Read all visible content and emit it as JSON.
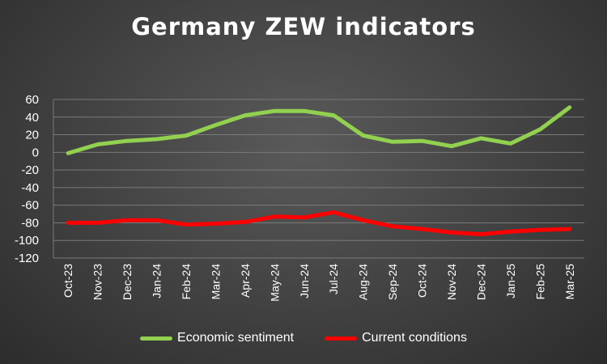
{
  "chart_data": {
    "type": "line",
    "title": "Germany ZEW indicators",
    "categories": [
      "Oct-23",
      "Nov-23",
      "Dec-23",
      "Jan-24",
      "Feb-24",
      "Mar-24",
      "Apr-24",
      "May-24",
      "Jun-24",
      "Jul-24",
      "Aug-24",
      "Sep-24",
      "Oct-24",
      "Nov-24",
      "Dec-24",
      "Jan-25",
      "Feb-25",
      "Mar-25"
    ],
    "ylim": [
      -120,
      60
    ],
    "yticks": [
      "60",
      "40",
      "20",
      "0",
      "-20",
      "-40",
      "-60",
      "-80",
      "-100",
      "-120"
    ],
    "grid": true,
    "legend_position": "bottom",
    "series": [
      {
        "name": "Economic sentiment",
        "color": "#92d050",
        "values": [
          -1,
          9,
          13,
          15,
          19,
          31,
          42,
          47,
          47,
          42,
          19,
          12,
          13,
          7,
          16,
          10,
          26,
          51
        ]
      },
      {
        "name": "Current conditions",
        "color": "#ff0000",
        "values": [
          -80,
          -80,
          -77,
          -77,
          -82,
          -81,
          -79,
          -73,
          -74,
          -68,
          -77,
          -84,
          -87,
          -91,
          -93,
          -90,
          -88,
          -87
        ]
      }
    ]
  }
}
